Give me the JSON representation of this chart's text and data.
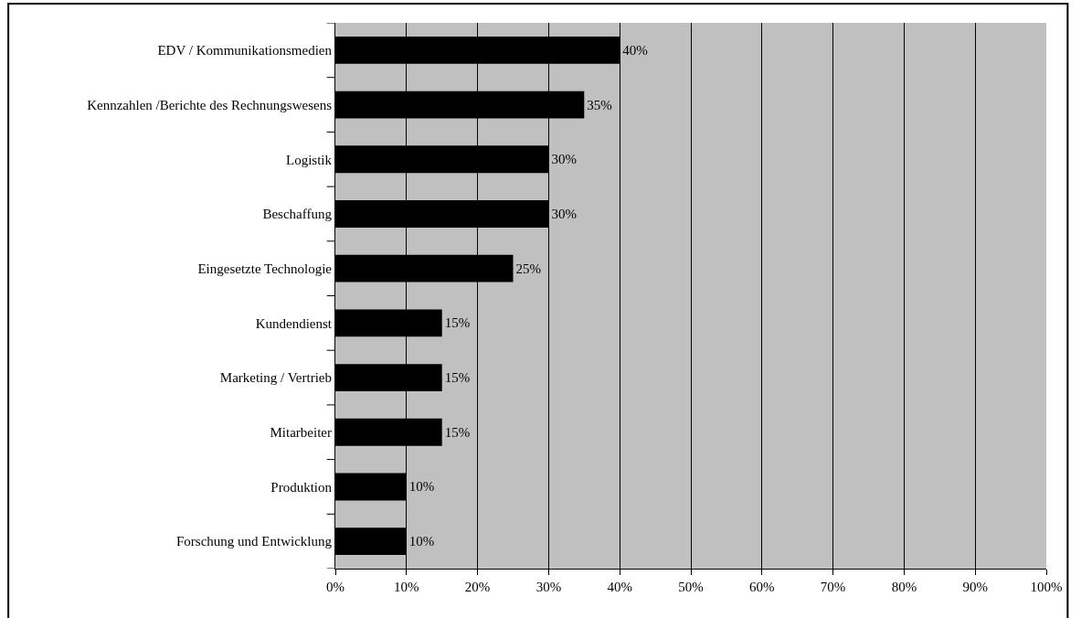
{
  "chart_data": {
    "type": "bar",
    "orientation": "horizontal",
    "categories": [
      "EDV / Kommunikationsmedien",
      "Kennzahlen /Berichte des Rechnungswesens",
      "Logistik",
      "Beschaffung",
      "Eingesetzte Technologie",
      "Kundendienst",
      "Marketing / Vertrieb",
      "Mitarbeiter",
      "Produktion",
      "Forschung und Entwicklung"
    ],
    "values": [
      40,
      35,
      30,
      30,
      25,
      15,
      15,
      15,
      10,
      10
    ],
    "value_labels": [
      "40%",
      "35%",
      "30%",
      "30%",
      "25%",
      "15%",
      "15%",
      "15%",
      "10%",
      "10%"
    ],
    "color": "#000000",
    "xlim": [
      0,
      100
    ],
    "xticks": [
      {
        "value": 0,
        "label": "0%"
      },
      {
        "value": 10,
        "label": "10%"
      },
      {
        "value": 20,
        "label": "20%"
      },
      {
        "value": 30,
        "label": "30%"
      },
      {
        "value": 40,
        "label": "40%"
      },
      {
        "value": 50,
        "label": "50%"
      },
      {
        "value": 60,
        "label": "60%"
      },
      {
        "value": 70,
        "label": "70%"
      },
      {
        "value": 80,
        "label": "80%"
      },
      {
        "value": 90,
        "label": "90%"
      },
      {
        "value": 100,
        "label": "100%"
      }
    ],
    "grid": "x",
    "legend": false
  }
}
